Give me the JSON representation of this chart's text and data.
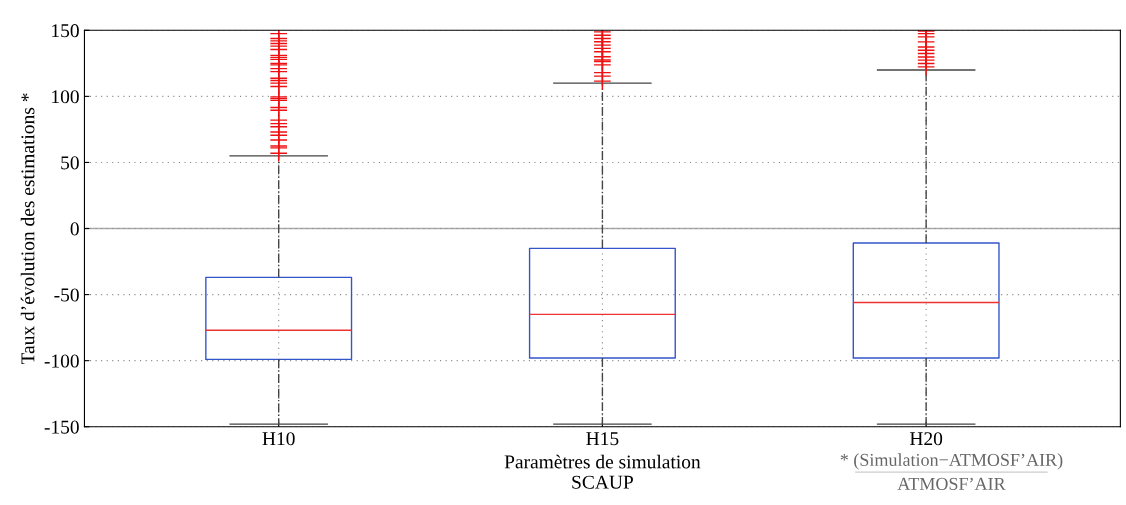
{
  "chart_data": {
    "type": "box",
    "ylabel": "Taux d’évolution des estimations *",
    "xlabel": "Paramètres de simulation\nSCAUP",
    "categories": [
      "H10",
      "H15",
      "H20"
    ],
    "boxes": [
      {
        "low": -148,
        "q1": -99,
        "median": -77,
        "q3": -37,
        "high": 55,
        "outliers": [
          147.5,
          143.8,
          142,
          140,
          138,
          135.5,
          131,
          129.5,
          128,
          125,
          123.8,
          121,
          118.7,
          113.7,
          112,
          110,
          107.5,
          99.6,
          98.4,
          97,
          91.6,
          89.5,
          82,
          79.4,
          77,
          73,
          70.6,
          67,
          62.4,
          61,
          57
        ]
      },
      {
        "low": -148,
        "q1": -98,
        "median": -65,
        "q3": -15,
        "high": 110,
        "outliers": [
          148.8,
          146.3,
          143.8,
          141.3,
          138.8,
          136.3,
          133.8,
          130,
          127.5,
          126.3,
          123.8,
          118,
          115.3,
          111.5
        ]
      },
      {
        "low": -148,
        "q1": -98,
        "median": -56,
        "q3": -11,
        "high": 120,
        "outliers": [
          149.5,
          147.5,
          145,
          141.2,
          137.4,
          134.9,
          132.4,
          129.8,
          127.4,
          124.9,
          122.3
        ]
      }
    ],
    "color": "#3355cc",
    "ylim": [
      -150,
      150
    ],
    "yticks": [
      -150,
      -100,
      -50,
      0,
      50,
      100,
      150
    ],
    "grid": true,
    "ref_lines": [
      {
        "axis": "y",
        "value": 0,
        "color": "#aaaaaa",
        "line_style": "solid"
      }
    ],
    "annotations": [
      "* (Simulation−ATMOSF’AIR)",
      "ATMOSF’AIR"
    ]
  }
}
